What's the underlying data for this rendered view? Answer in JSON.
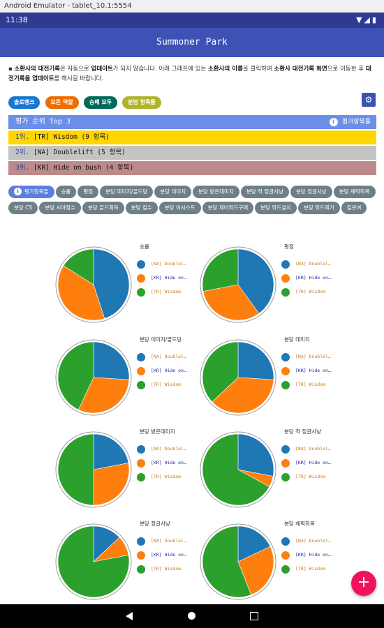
{
  "window_title": "Android Emulator - tablet_10.1:5554",
  "status": {
    "time": "11:38",
    "icons": "▼◢▮"
  },
  "app_title": "Summoner Park",
  "notice": {
    "bullet": "▪ ",
    "s1": "소환사의 대전기록",
    "s2": "은 자동으로 ",
    "s3": "업데이트",
    "s4": "가 되지 않습니다. 아래 그래프에 있는 ",
    "s5": "소환사의 이름",
    "s6": "을 클릭하여 ",
    "s7": "소환사 대전기록 화면",
    "s8": "으로 이동한 후 ",
    "s9": "대전기록을 업데이트",
    "s10": "를 해시길 바랍니다."
  },
  "filters": [
    {
      "label": "솔로랭크",
      "color": "#1977d2"
    },
    {
      "label": "모든 역할",
      "color": "#ef6c00"
    },
    {
      "label": "승패 모두",
      "color": "#00695c"
    },
    {
      "label": "분당 항목들",
      "color": "#afb42b"
    }
  ],
  "settings_icon": "sliders-icon",
  "ranking": {
    "title": "평가 순위 Top 3",
    "info_label": "평가항목들",
    "rows": [
      {
        "rank": "1위.",
        "text": " [TR] Wisdom (9 항목)",
        "bg": "#ffd600"
      },
      {
        "rank": "2위.",
        "text": " [NA] Doublelift (5 항목)",
        "bg": "#c4c4c4"
      },
      {
        "rank": "3위.",
        "text": " [KR] Hide on bush (4 항목)",
        "bg": "#bc8a8a"
      }
    ]
  },
  "tags": {
    "info_label": "평가항목들",
    "items": [
      "승률",
      "평점",
      "분당 데미지/골드당",
      "분당 데미지",
      "분당 받은데미지",
      "분당 적 정글사냥",
      "분당 정글사냥",
      "분당 체력회복",
      "분당 CS",
      "분당 시야점수",
      "분당 골드획득",
      "분당 킬수",
      "분당 어시스트",
      "분당 제어와드구매",
      "분당 와드설치",
      "분당 와드제거",
      "킬관여"
    ]
  },
  "colors": {
    "na": "#1f77b4",
    "kr": "#ff7f0e",
    "tr": "#2ca02c",
    "legend_text_na": "#cc7b22",
    "legend_text_kr": "#2a2aa0",
    "legend_text_tr": "#cc7b22"
  },
  "chart_data": [
    {
      "type": "pie",
      "title": "승률",
      "series": [
        {
          "name": "[NA] Doublel…",
          "value": 45
        },
        {
          "name": "[KR] Hide on…",
          "value": 39
        },
        {
          "name": "[TR] Wisdom",
          "value": 16
        }
      ]
    },
    {
      "type": "pie",
      "title": "평점",
      "series": [
        {
          "name": "[NA] Doublel…",
          "value": 40
        },
        {
          "name": "[KR] Hide on…",
          "value": 32
        },
        {
          "name": "[TR] Wisdom",
          "value": 28
        }
      ]
    },
    {
      "type": "pie",
      "title": "분당 데미지/골드당",
      "series": [
        {
          "name": "[NA] Doublel…",
          "value": 26
        },
        {
          "name": "[KR] Hide on…",
          "value": 31
        },
        {
          "name": "[TR] Wisdom",
          "value": 43
        }
      ]
    },
    {
      "type": "pie",
      "title": "분당 데미지",
      "series": [
        {
          "name": "[NA] Doublel…",
          "value": 26
        },
        {
          "name": "[KR] Hide on…",
          "value": 37
        },
        {
          "name": "[TR] Wisdom",
          "value": 37
        }
      ]
    },
    {
      "type": "pie",
      "title": "분당 받은데미지",
      "series": [
        {
          "name": "[NA] Doublel…",
          "value": 22
        },
        {
          "name": "[KR] Hide on…",
          "value": 28
        },
        {
          "name": "[TR] Wisdom",
          "value": 50
        }
      ]
    },
    {
      "type": "pie",
      "title": "분당 적 정글사냥",
      "series": [
        {
          "name": "[NA] Doublel…",
          "value": 28
        },
        {
          "name": "[KR] Hide on…",
          "value": 5
        },
        {
          "name": "[TR] Wisdom",
          "value": 67
        }
      ]
    },
    {
      "type": "pie",
      "title": "분당 정글사냥",
      "series": [
        {
          "name": "[NA] Doublel…",
          "value": 13
        },
        {
          "name": "[KR] Hide on…",
          "value": 9
        },
        {
          "name": "[TR] Wisdom",
          "value": 78
        }
      ]
    },
    {
      "type": "pie",
      "title": "분당 체력회복",
      "series": [
        {
          "name": "[NA] Doublel…",
          "value": 18
        },
        {
          "name": "[KR] Hide on…",
          "value": 26
        },
        {
          "name": "[TR] Wisdom",
          "value": 56
        }
      ]
    }
  ],
  "fab": "+"
}
